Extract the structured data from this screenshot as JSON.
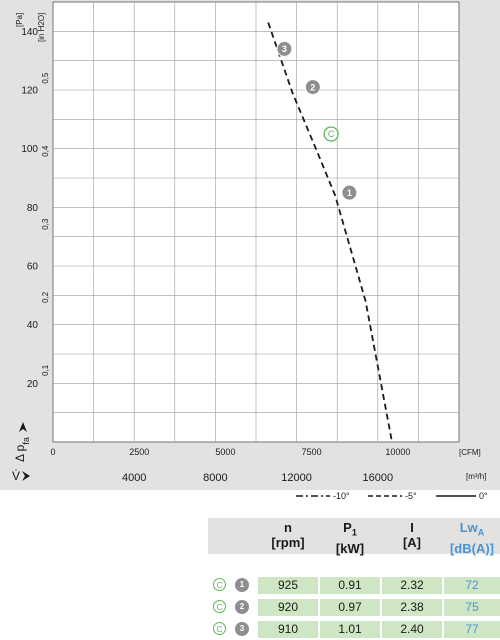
{
  "chart_data": {
    "type": "line",
    "title": "",
    "ylabel": "Δ p_fa",
    "xlabel": "V̇",
    "y_left": {
      "unit": "[Pa]",
      "range": [
        0,
        150
      ],
      "ticks": [
        "20",
        "40",
        "60",
        "80",
        "100",
        "120",
        "140"
      ]
    },
    "y_right": {
      "unit": "[in H2O]",
      "ticks": [
        "0,1",
        "0,2",
        "0,3",
        "0,4",
        "0,5"
      ]
    },
    "x_top": {
      "unit": "[CFM]",
      "ticks": [
        "0",
        "2500",
        "5000",
        "7500",
        "10000"
      ]
    },
    "x_bottom": {
      "unit": "[m³/h]",
      "range": [
        0,
        20000
      ],
      "ticks": [
        "4000",
        "8000",
        "12000",
        "16000"
      ]
    },
    "grid": true,
    "legend": [
      {
        "label": "-10°",
        "style": "dash-dot"
      },
      {
        "label": "-5°",
        "style": "dashed"
      },
      {
        "label": "0°",
        "style": "solid"
      }
    ],
    "series": [
      {
        "name": "-5°",
        "x": [
          10600,
          11800,
          12950,
          13900,
          15400,
          16700
        ],
        "y": [
          143,
          119,
          100,
          84,
          48,
          0
        ]
      }
    ],
    "markers": [
      {
        "label": "3",
        "x": 11400,
        "y": 134
      },
      {
        "label": "2",
        "x": 12800,
        "y": 121
      },
      {
        "label": "C",
        "x": 13700,
        "y": 105
      },
      {
        "label": "1",
        "x": 14600,
        "y": 85
      }
    ]
  },
  "table": {
    "headers": [
      {
        "main": "n",
        "sub": "",
        "unit": "[rpm]"
      },
      {
        "main": "P",
        "sub": "1",
        "unit": "[kW]"
      },
      {
        "main": "I",
        "sub": "",
        "unit": "[A]"
      },
      {
        "main": "Lw",
        "sub": "A",
        "unit": "[dB(A)]"
      }
    ],
    "rows": [
      {
        "c": "C",
        "idx": "1",
        "n": "925",
        "p1": "0.91",
        "i": "2.32",
        "lwa": "72"
      },
      {
        "c": "C",
        "idx": "2",
        "n": "920",
        "p1": "0.97",
        "i": "2.38",
        "lwa": "75"
      },
      {
        "c": "C",
        "idx": "3",
        "n": "910",
        "p1": "1.01",
        "i": "2.40",
        "lwa": "77"
      }
    ]
  },
  "colors": {
    "panel": "#e2e2e2",
    "cell": "#cfe6c4",
    "marker": "#8e8e8e",
    "c_marker": "#5fb35a",
    "lwa_text": "#4a94d4"
  }
}
